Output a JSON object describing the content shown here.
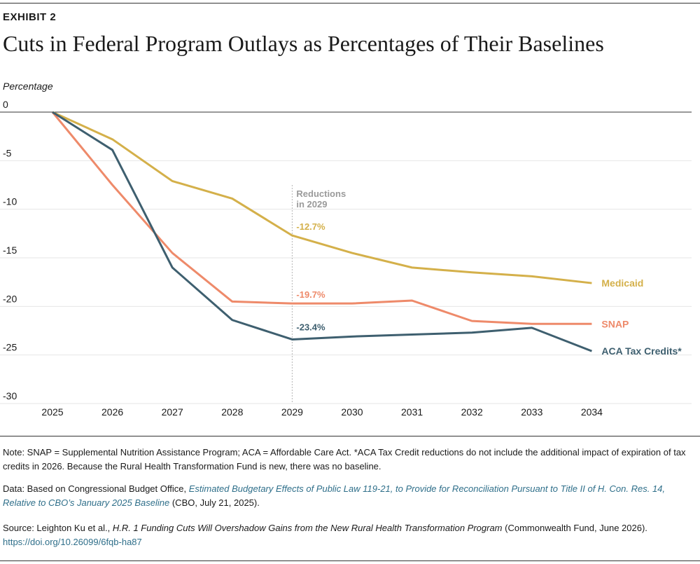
{
  "header": {
    "exhibit_label": "EXHIBIT 2",
    "title": "Cuts in Federal Program Outlays as Percentages of Their Baselines"
  },
  "chart_data": {
    "type": "line",
    "ylabel": "Percentage",
    "xlabel": "",
    "x": [
      "2025",
      "2026",
      "2027",
      "2028",
      "2029",
      "2030",
      "2031",
      "2032",
      "2033",
      "2034"
    ],
    "ylim": [
      -30,
      0
    ],
    "yticks": [
      0,
      -5,
      -10,
      -15,
      -20,
      -25,
      -30
    ],
    "grid": "horizontal",
    "series": [
      {
        "name": "Medicaid",
        "color": "#d4b04a",
        "values": [
          0,
          -2.8,
          -7.1,
          -8.9,
          -12.7,
          -14.5,
          -16.0,
          -16.5,
          -16.9,
          -17.6
        ],
        "label_2029": "-12.7%"
      },
      {
        "name": "SNAP",
        "color": "#ee8a6a",
        "values": [
          0,
          -7.5,
          -14.5,
          -19.5,
          -19.7,
          -19.7,
          -19.4,
          -21.5,
          -21.8,
          -21.8
        ],
        "label_2029": "-19.7%"
      },
      {
        "name": "ACA Tax Credits*",
        "color": "#3e5f6f",
        "values": [
          0,
          -3.9,
          -16.0,
          -21.4,
          -23.4,
          -23.1,
          -22.9,
          -22.7,
          -22.2,
          -24.6
        ],
        "label_2029": "-23.4%"
      }
    ],
    "annotation": {
      "x": "2029",
      "lines": [
        "Reductions",
        "in 2029"
      ]
    }
  },
  "notes": {
    "note": "Note: SNAP = Supplemental Nutrition Assistance Program; ACA = Affordable Care Act. *ACA Tax Credit reductions do not include the additional impact of expiration of tax credits in 2026. Because the Rural Health Transformation Fund is new, there was no baseline.",
    "data_prefix": "Data: Based on Congressional Budget Office, ",
    "data_link": "Estimated Budgetary Effects of Public Law 119-21, to Provide for Reconciliation Pursuant to Title II of H. Con. Res. 14, Relative to CBO’s January 2025 Baseline",
    "data_suffix": " (CBO, July 21, 2025).",
    "source_prefix": "Source: Leighton Ku et al., ",
    "source_title": "H.R. 1 Funding Cuts Will Overshadow Gains from the New Rural Health Transformation Program",
    "source_suffix": " (Commonwealth Fund, June 2026).",
    "source_url": "https://doi.org/10.26099/6fqb-ha87"
  }
}
